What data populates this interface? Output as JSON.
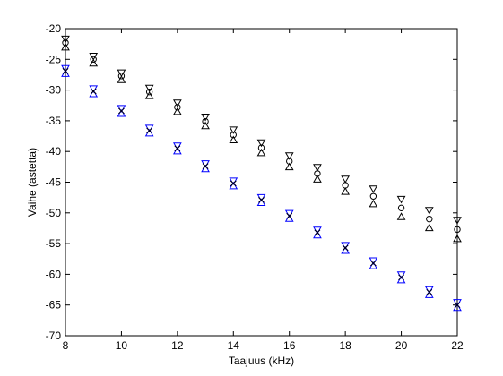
{
  "chart_data": {
    "type": "scatter",
    "title": "",
    "xlabel": "Taajuus (kHz)",
    "ylabel": "Vaihe (astetta)",
    "xlim": [
      8,
      22
    ],
    "ylim": [
      -70,
      -20
    ],
    "xticks": [
      8,
      10,
      12,
      14,
      16,
      18,
      20,
      22
    ],
    "yticks": [
      -20,
      -25,
      -30,
      -35,
      -40,
      -45,
      -50,
      -55,
      -60,
      -65,
      -70
    ],
    "grid": false,
    "legend": "none",
    "series": [
      {
        "color": "#000000",
        "marker": "circle",
        "x": [
          8,
          9,
          10,
          11,
          12,
          13,
          14,
          15,
          16,
          17,
          18,
          19,
          20,
          21,
          22
        ],
        "y": [
          -22.3,
          -25.0,
          -27.7,
          -30.3,
          -32.8,
          -35.1,
          -37.3,
          -39.4,
          -41.6,
          -43.6,
          -45.5,
          -47.3,
          -49.2,
          -51.0,
          -52.7
        ],
        "y_upper": [
          -21.8,
          -24.6,
          -27.3,
          -29.8,
          -32.2,
          -34.5,
          -36.6,
          -38.7,
          -40.8,
          -42.7,
          -44.6,
          -46.2,
          -47.9,
          -49.7,
          -51.3
        ],
        "y_lower": [
          -22.9,
          -25.5,
          -28.2,
          -30.8,
          -33.4,
          -35.7,
          -38.0,
          -40.1,
          -42.4,
          -44.4,
          -46.4,
          -48.4,
          -50.5,
          -52.3,
          -54.1
        ]
      },
      {
        "color": "#0000ff",
        "marker": "x",
        "x": [
          8,
          9,
          10,
          11,
          12,
          13,
          14,
          15,
          16,
          17,
          18,
          19,
          20,
          21,
          22
        ],
        "y": [
          -26.9,
          -30.2,
          -33.4,
          -36.6,
          -39.5,
          -42.4,
          -45.2,
          -47.9,
          -50.5,
          -53.2,
          -55.7,
          -58.2,
          -60.5,
          -62.9,
          -65.0
        ],
        "y_upper": [
          -26.6,
          -29.9,
          -33.1,
          -36.3,
          -39.2,
          -42.1,
          -44.9,
          -47.6,
          -50.2,
          -52.9,
          -55.4,
          -57.9,
          -60.2,
          -62.6,
          -64.7
        ],
        "y_lower": [
          -27.2,
          -30.5,
          -33.7,
          -36.9,
          -39.8,
          -42.7,
          -45.5,
          -48.2,
          -50.8,
          -53.5,
          -56.0,
          -58.5,
          -60.8,
          -63.2,
          -65.3
        ]
      },
      {
        "color": "#000000",
        "marker": "x",
        "x": [
          8,
          9,
          10,
          11,
          12,
          13,
          14,
          15,
          16,
          17,
          18,
          19,
          20,
          21,
          22
        ],
        "y": [
          -26.9,
          -30.2,
          -33.4,
          -36.6,
          -39.5,
          -42.4,
          -45.2,
          -47.9,
          -50.5,
          -53.2,
          -55.7,
          -58.2,
          -60.5,
          -62.9,
          -65.0
        ],
        "y_upper": [],
        "y_lower": []
      }
    ]
  }
}
